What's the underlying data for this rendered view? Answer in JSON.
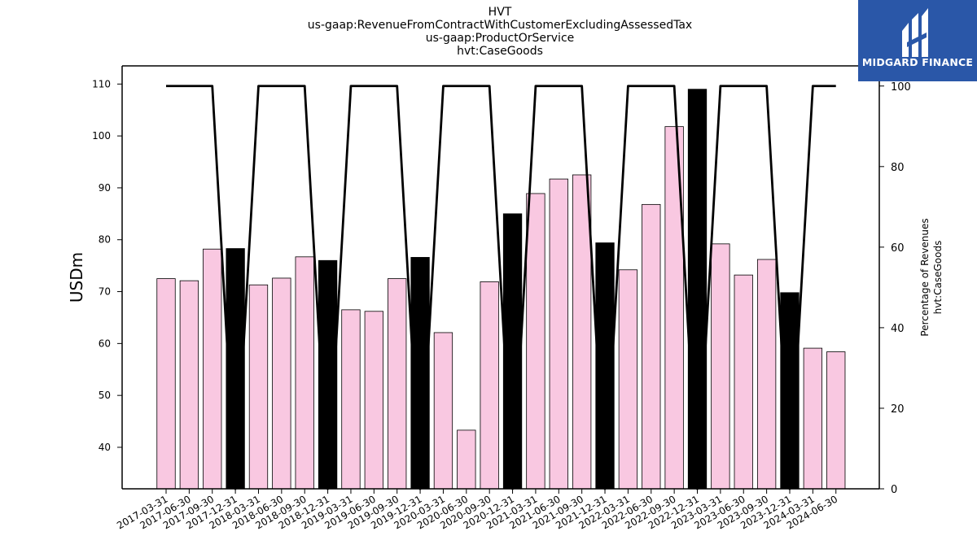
{
  "chart_data": {
    "type": "bar",
    "title_lines": [
      "HVT",
      "us-gaap:RevenueFromContractWithCustomerExcludingAssessedTax",
      "us-gaap:ProductOrService",
      "hvt:CaseGoods"
    ],
    "ylabel": "USDm",
    "y2label_lines": [
      "Percentage of Revenues",
      "hvt:CaseGoods"
    ],
    "ylim": [
      32,
      113.5
    ],
    "y2lim": [
      0,
      105
    ],
    "yticks": [
      40,
      50,
      60,
      70,
      80,
      90,
      100,
      110
    ],
    "y2ticks": [
      0,
      20,
      40,
      60,
      80,
      100
    ],
    "categories": [
      "2017-03-31",
      "2017-06-30",
      "2017-09-30",
      "2017-12-31",
      "2018-03-31",
      "2018-06-30",
      "2018-09-30",
      "2018-12-31",
      "2019-03-31",
      "2019-06-30",
      "2019-09-30",
      "2019-12-31",
      "2020-03-31",
      "2020-06-30",
      "2020-09-30",
      "2020-12-31",
      "2021-03-31",
      "2021-06-30",
      "2021-09-30",
      "2021-12-31",
      "2022-03-31",
      "2022-06-30",
      "2022-09-30",
      "2022-12-31",
      "2023-03-31",
      "2023-06-30",
      "2023-09-30",
      "2023-12-31",
      "2024-03-31",
      "2024-06-30"
    ],
    "series": [
      {
        "type": "bar",
        "values": [
          72.5,
          72.1,
          78.2,
          78.3,
          71.3,
          72.6,
          76.7,
          76.0,
          66.5,
          66.2,
          72.5,
          76.6,
          62.1,
          43.3,
          71.9,
          85.0,
          88.9,
          91.7,
          92.5,
          79.4,
          74.2,
          86.8,
          101.8,
          109.0,
          79.2,
          73.2,
          76.2,
          69.8,
          59.1,
          58.4
        ],
        "bar_colors": [
          "#f9c8e1",
          "#f9c8e1",
          "#f9c8e1",
          "#000000",
          "#f9c8e1",
          "#f9c8e1",
          "#f9c8e1",
          "#000000",
          "#f9c8e1",
          "#f9c8e1",
          "#f9c8e1",
          "#000000",
          "#f9c8e1",
          "#f9c8e1",
          "#f9c8e1",
          "#000000",
          "#f9c8e1",
          "#f9c8e1",
          "#f9c8e1",
          "#000000",
          "#f9c8e1",
          "#f9c8e1",
          "#f9c8e1",
          "#000000",
          "#f9c8e1",
          "#f9c8e1",
          "#f9c8e1",
          "#000000",
          "#f9c8e1",
          "#f9c8e1"
        ]
      },
      {
        "type": "line",
        "axis": "right",
        "color": "#000000",
        "values": [
          100,
          100,
          100,
          0,
          100,
          100,
          100,
          0,
          100,
          100,
          100,
          0,
          100,
          100,
          100,
          0,
          100,
          100,
          100,
          0,
          100,
          100,
          100,
          0,
          100,
          100,
          100,
          0,
          100,
          100
        ]
      }
    ]
  },
  "logo": {
    "text": "MIDGARD FINANCE",
    "background": "#2a57a8"
  }
}
